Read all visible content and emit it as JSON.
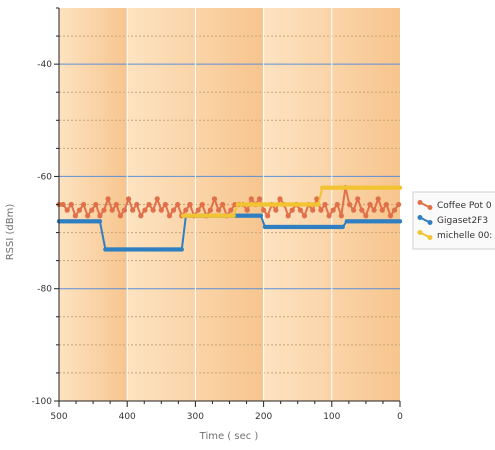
{
  "chart_data": {
    "type": "line",
    "title": "",
    "xlabel": "Time ( sec )",
    "ylabel": "RSSI (dBm)",
    "xlim": [
      500,
      0
    ],
    "ylim": [
      -100,
      -30
    ],
    "x_reversed": true,
    "x_ticks": [
      500,
      400,
      300,
      200,
      100,
      0
    ],
    "y_ticks": [
      -40,
      -60,
      -80,
      -100
    ],
    "grid": true,
    "legend_position": "right",
    "background": {
      "band_dark": "#f7c58e",
      "band_light": "#fde3c1",
      "band_edges": [
        500,
        400,
        200,
        0
      ]
    },
    "series": [
      {
        "name": "Coffee Pot 0",
        "color": "#e0704a",
        "icon": "trend-icon",
        "points": [
          [
            500,
            -65
          ],
          [
            494,
            -65
          ],
          [
            488,
            -66
          ],
          [
            482,
            -65
          ],
          [
            476,
            -67
          ],
          [
            470,
            -66
          ],
          [
            464,
            -65
          ],
          [
            458,
            -67
          ],
          [
            452,
            -66
          ],
          [
            446,
            -65
          ],
          [
            440,
            -67
          ],
          [
            434,
            -66
          ],
          [
            428,
            -64
          ],
          [
            422,
            -66
          ],
          [
            416,
            -65
          ],
          [
            410,
            -67
          ],
          [
            404,
            -66
          ],
          [
            398,
            -64
          ],
          [
            392,
            -66
          ],
          [
            386,
            -65
          ],
          [
            380,
            -67
          ],
          [
            374,
            -66
          ],
          [
            368,
            -65
          ],
          [
            362,
            -66
          ],
          [
            356,
            -64
          ],
          [
            350,
            -66
          ],
          [
            344,
            -65
          ],
          [
            338,
            -67
          ],
          [
            332,
            -66
          ],
          [
            326,
            -65
          ],
          [
            320,
            -67
          ],
          [
            314,
            -66
          ],
          [
            308,
            -65
          ],
          [
            302,
            -67
          ],
          [
            296,
            -66
          ],
          [
            290,
            -65
          ],
          [
            284,
            -67
          ],
          [
            278,
            -66
          ],
          [
            272,
            -64
          ],
          [
            266,
            -66
          ],
          [
            260,
            -65
          ],
          [
            254,
            -67
          ],
          [
            248,
            -66
          ],
          [
            242,
            -65
          ],
          [
            236,
            -65
          ],
          [
            230,
            -65
          ],
          [
            224,
            -66
          ],
          [
            218,
            -64
          ],
          [
            212,
            -65
          ],
          [
            206,
            -64
          ],
          [
            200,
            -66
          ],
          [
            194,
            -67
          ],
          [
            188,
            -65
          ],
          [
            182,
            -66
          ],
          [
            176,
            -64
          ],
          [
            170,
            -65
          ],
          [
            164,
            -67
          ],
          [
            158,
            -66
          ],
          [
            152,
            -65
          ],
          [
            146,
            -66
          ],
          [
            140,
            -67
          ],
          [
            134,
            -65
          ],
          [
            128,
            -66
          ],
          [
            122,
            -64
          ],
          [
            116,
            -66
          ],
          [
            110,
            -65
          ],
          [
            104,
            -67
          ],
          [
            98,
            -66
          ],
          [
            92,
            -65
          ],
          [
            86,
            -67
          ],
          [
            80,
            -62
          ],
          [
            74,
            -65
          ],
          [
            68,
            -66
          ],
          [
            62,
            -64
          ],
          [
            56,
            -66
          ],
          [
            50,
            -67
          ],
          [
            44,
            -65
          ],
          [
            38,
            -66
          ],
          [
            32,
            -64
          ],
          [
            26,
            -66
          ],
          [
            20,
            -65
          ],
          [
            14,
            -67
          ],
          [
            8,
            -66
          ],
          [
            2,
            -65
          ]
        ]
      },
      {
        "name": "Gigaset2F3",
        "color": "#2f7fc1",
        "icon": "trend-icon",
        "points": [
          [
            500,
            -68
          ],
          [
            440,
            -68
          ],
          [
            432,
            -73
          ],
          [
            320,
            -73
          ],
          [
            314,
            -67
          ],
          [
            244,
            -67
          ],
          [
            238,
            -67
          ],
          [
            204,
            -67
          ],
          [
            198,
            -69
          ],
          [
            84,
            -69
          ],
          [
            78,
            -68
          ],
          [
            0,
            -68
          ]
        ]
      },
      {
        "name": "michelle 00:",
        "color": "#f2c432",
        "icon": "trend-icon",
        "points": [
          [
            318,
            -67
          ],
          [
            244,
            -67
          ],
          [
            238,
            -65
          ],
          [
            120,
            -65
          ],
          [
            114,
            -62
          ],
          [
            0,
            -62
          ]
        ]
      }
    ]
  },
  "legend": {
    "items": [
      {
        "label": "Coffee Pot 0",
        "icon": "trend-icon",
        "color": "#e0704a"
      },
      {
        "label": "Gigaset2F3",
        "icon": "trend-icon",
        "color": "#2f7fc1"
      },
      {
        "label": "michelle 00:",
        "icon": "trend-icon",
        "color": "#f2c432"
      }
    ]
  }
}
